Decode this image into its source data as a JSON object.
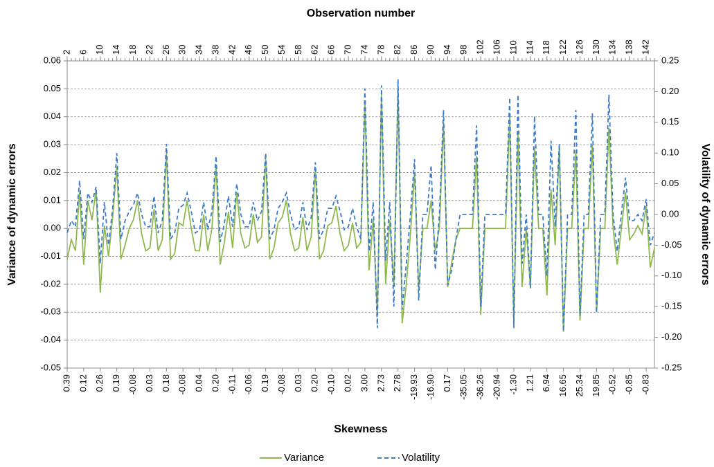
{
  "chart_data": {
    "type": "line",
    "top_xlabel": "Observation number",
    "xlabel": "Skewness",
    "ylabel": "Variance of dynamic errors",
    "y2label": "Volatility of dynamic errors",
    "x": [
      2,
      3,
      4,
      5,
      6,
      7,
      8,
      9,
      10,
      11,
      12,
      13,
      14,
      15,
      16,
      17,
      18,
      19,
      20,
      21,
      22,
      23,
      24,
      25,
      26,
      27,
      28,
      29,
      30,
      31,
      32,
      33,
      34,
      35,
      36,
      37,
      38,
      39,
      40,
      41,
      42,
      43,
      44,
      45,
      46,
      47,
      48,
      49,
      50,
      51,
      52,
      53,
      54,
      55,
      56,
      57,
      58,
      59,
      60,
      61,
      62,
      63,
      64,
      65,
      66,
      67,
      68,
      69,
      70,
      71,
      72,
      73,
      74,
      75,
      76,
      77,
      78,
      79,
      80,
      81,
      82,
      83,
      84,
      85,
      86,
      87,
      88,
      89,
      90,
      91,
      92,
      93,
      94,
      95,
      96,
      97,
      98,
      99,
      100,
      101,
      102,
      103,
      104,
      105,
      106,
      107,
      108,
      109,
      110,
      111,
      112,
      113,
      114,
      115,
      116,
      117,
      118,
      119,
      120,
      121,
      122,
      123,
      124,
      125,
      126,
      127,
      128,
      129,
      130,
      131,
      132,
      133,
      134,
      135,
      136,
      137,
      138,
      139,
      140,
      141,
      142,
      143,
      144
    ],
    "xlim": [
      2,
      144
    ],
    "xticks": [
      2,
      6,
      10,
      14,
      18,
      22,
      26,
      30,
      34,
      38,
      42,
      46,
      50,
      54,
      58,
      62,
      66,
      70,
      74,
      78,
      82,
      86,
      90,
      94,
      98,
      102,
      106,
      110,
      114,
      118,
      122,
      126,
      130,
      134,
      138,
      142
    ],
    "skew_ticks": [
      {
        "value": 2,
        "label": "0.39"
      },
      {
        "value": 6,
        "label": "0.12"
      },
      {
        "value": 10,
        "label": "0.26"
      },
      {
        "value": 14,
        "label": "0.19"
      },
      {
        "value": 18,
        "label": "-0.08"
      },
      {
        "value": 22,
        "label": "0.03"
      },
      {
        "value": 26,
        "label": "0.18"
      },
      {
        "value": 30,
        "label": "-0.08"
      },
      {
        "value": 34,
        "label": "0.04"
      },
      {
        "value": 38,
        "label": "0.20"
      },
      {
        "value": 42,
        "label": "-0.11"
      },
      {
        "value": 46,
        "label": "-0.06"
      },
      {
        "value": 50,
        "label": "0.19"
      },
      {
        "value": 54,
        "label": "-0.08"
      },
      {
        "value": 58,
        "label": "0.03"
      },
      {
        "value": 62,
        "label": "0.20"
      },
      {
        "value": 66,
        "label": "-0.10"
      },
      {
        "value": 70,
        "label": "0.02"
      },
      {
        "value": 74,
        "label": "3.00"
      },
      {
        "value": 78,
        "label": "2.73"
      },
      {
        "value": 82,
        "label": "2.78"
      },
      {
        "value": 86,
        "label": "-19.93"
      },
      {
        "value": 90,
        "label": "-16.90"
      },
      {
        "value": 94,
        "label": "0.17"
      },
      {
        "value": 98,
        "label": "-35.05"
      },
      {
        "value": 102,
        "label": "-36.26"
      },
      {
        "value": 106,
        "label": "-20.94"
      },
      {
        "value": 110,
        "label": "-1.30"
      },
      {
        "value": 114,
        "label": "1.21"
      },
      {
        "value": 118,
        "label": "6.94"
      },
      {
        "value": 122,
        "label": "16.65"
      },
      {
        "value": 126,
        "label": "25.34"
      },
      {
        "value": 130,
        "label": "19.85"
      },
      {
        "value": 134,
        "label": "-0.52"
      },
      {
        "value": 138,
        "label": "-0.85"
      },
      {
        "value": 142,
        "label": "-0.83"
      }
    ],
    "ylim": [
      -0.05,
      0.06
    ],
    "yticks": [
      {
        "value": -0.05,
        "label": "-0.05"
      },
      {
        "value": -0.04,
        "label": "-0.04"
      },
      {
        "value": -0.03,
        "label": "-0.03"
      },
      {
        "value": -0.02,
        "label": "-0.02"
      },
      {
        "value": -0.01,
        "label": "-0.01"
      },
      {
        "value": 0,
        "label": "0.00"
      },
      {
        "value": 0.01,
        "label": "0.01"
      },
      {
        "value": 0.02,
        "label": "0.02"
      },
      {
        "value": 0.03,
        "label": "0.03"
      },
      {
        "value": 0.04,
        "label": "0.04"
      },
      {
        "value": 0.05,
        "label": "0.05"
      },
      {
        "value": 0.06,
        "label": "0.06"
      }
    ],
    "y2lim": [
      -0.25,
      0.25
    ],
    "y2ticks": [
      {
        "value": -0.25,
        "label": "-0.25"
      },
      {
        "value": -0.2,
        "label": "-0.20"
      },
      {
        "value": -0.15,
        "label": "-0.15"
      },
      {
        "value": -0.1,
        "label": "-0.10"
      },
      {
        "value": -0.05,
        "label": "-0.05"
      },
      {
        "value": 0,
        "label": "0.00"
      },
      {
        "value": 0.05,
        "label": "0.05"
      },
      {
        "value": 0.1,
        "label": "0.10"
      },
      {
        "value": 0.15,
        "label": "0.15"
      },
      {
        "value": 0.2,
        "label": "0.20"
      },
      {
        "value": 0.25,
        "label": "0.25"
      }
    ],
    "grid": true,
    "series": [
      {
        "name": "Variance",
        "color": "#8fb84e",
        "dash": false,
        "values": [
          -0.011,
          -0.004,
          -0.008,
          0.013,
          -0.013,
          0.01,
          0.003,
          0.014,
          -0.023,
          0.001,
          -0.01,
          0.004,
          0.022,
          -0.011,
          -0.006,
          0.0,
          0.003,
          0.01,
          -0.002,
          -0.008,
          -0.007,
          0.007,
          -0.008,
          -0.004,
          0.027,
          -0.011,
          -0.009,
          0.002,
          0.001,
          0.01,
          0.0,
          -0.008,
          -0.008,
          0.005,
          -0.008,
          0.0,
          0.023,
          -0.013,
          -0.005,
          0.006,
          -0.007,
          0.013,
          -0.002,
          -0.007,
          -0.006,
          0.005,
          -0.005,
          -0.003,
          0.025,
          -0.011,
          -0.007,
          0.002,
          0.004,
          0.01,
          -0.002,
          -0.008,
          -0.007,
          0.004,
          -0.008,
          -0.003,
          0.021,
          -0.011,
          -0.008,
          0.001,
          0.002,
          0.008,
          -0.002,
          -0.008,
          -0.006,
          0.002,
          -0.007,
          -0.005,
          0.045,
          -0.015,
          0.003,
          -0.031,
          0.048,
          -0.02,
          0.003,
          -0.02,
          0.05,
          -0.034,
          -0.02,
          -0.002,
          0.02,
          -0.022,
          0.0,
          0.0,
          0.01,
          -0.008,
          0.0,
          0.038,
          -0.021,
          -0.012,
          -0.004,
          0.0,
          0.0,
          0.0,
          0.0,
          0.026,
          -0.031,
          0.0,
          0.0,
          0.0,
          0.0,
          0.0,
          0.0,
          0.04,
          -0.034,
          0.035,
          -0.021,
          0.0,
          -0.021,
          0.029,
          0.0,
          0.0,
          -0.024,
          0.014,
          -0.006,
          0.029,
          -0.037,
          0.0,
          0.0,
          0.028,
          -0.033,
          0.0,
          0.0,
          0.03,
          -0.03,
          0.0,
          0.0,
          0.036,
          0.0,
          -0.013,
          0.0,
          0.013,
          -0.004,
          -0.002,
          0.001,
          -0.002,
          0.008,
          -0.014,
          -0.007
        ]
      },
      {
        "name": "Volatility",
        "color": "#3d7cc9",
        "dash": true,
        "axis": "y2",
        "values": [
          -0.03,
          -0.01,
          -0.02,
          0.055,
          -0.04,
          0.035,
          0.02,
          0.045,
          -0.08,
          0.02,
          -0.05,
          0.01,
          0.1,
          -0.04,
          -0.01,
          0.005,
          0.015,
          0.035,
          0.0,
          -0.02,
          -0.02,
          0.03,
          -0.03,
          -0.01,
          0.115,
          -0.04,
          -0.03,
          0.01,
          0.015,
          0.035,
          0.005,
          -0.03,
          -0.025,
          0.02,
          -0.025,
          0.005,
          0.095,
          -0.045,
          -0.015,
          0.03,
          -0.02,
          0.05,
          0.0,
          -0.02,
          -0.02,
          0.02,
          -0.01,
          0.005,
          0.1,
          -0.04,
          -0.025,
          0.01,
          0.02,
          0.035,
          0.0,
          -0.025,
          -0.02,
          0.02,
          -0.025,
          -0.005,
          0.085,
          -0.04,
          -0.025,
          0.01,
          0.01,
          0.03,
          0.005,
          -0.025,
          -0.02,
          0.01,
          -0.02,
          -0.04,
          0.205,
          -0.06,
          0.02,
          -0.185,
          0.21,
          -0.075,
          0.02,
          -0.15,
          0.22,
          -0.155,
          -0.08,
          0.0,
          0.09,
          -0.14,
          0.0,
          0.0,
          0.08,
          -0.09,
          0.0,
          0.17,
          -0.115,
          -0.09,
          -0.04,
          0.0,
          0.0,
          0.0,
          0.0,
          0.145,
          -0.15,
          0.0,
          0.0,
          0.0,
          0.0,
          0.0,
          0.0,
          0.19,
          -0.185,
          0.195,
          -0.08,
          0.0,
          -0.12,
          0.16,
          0.0,
          0.0,
          -0.1,
          0.12,
          -0.02,
          0.115,
          -0.19,
          0.0,
          0.0,
          0.17,
          -0.165,
          0.0,
          0.0,
          0.165,
          -0.16,
          0.0,
          0.0,
          0.195,
          0.0,
          -0.06,
          0.0,
          0.06,
          -0.01,
          -0.01,
          0.0,
          -0.01,
          0.025,
          -0.05,
          -0.03
        ]
      }
    ]
  }
}
